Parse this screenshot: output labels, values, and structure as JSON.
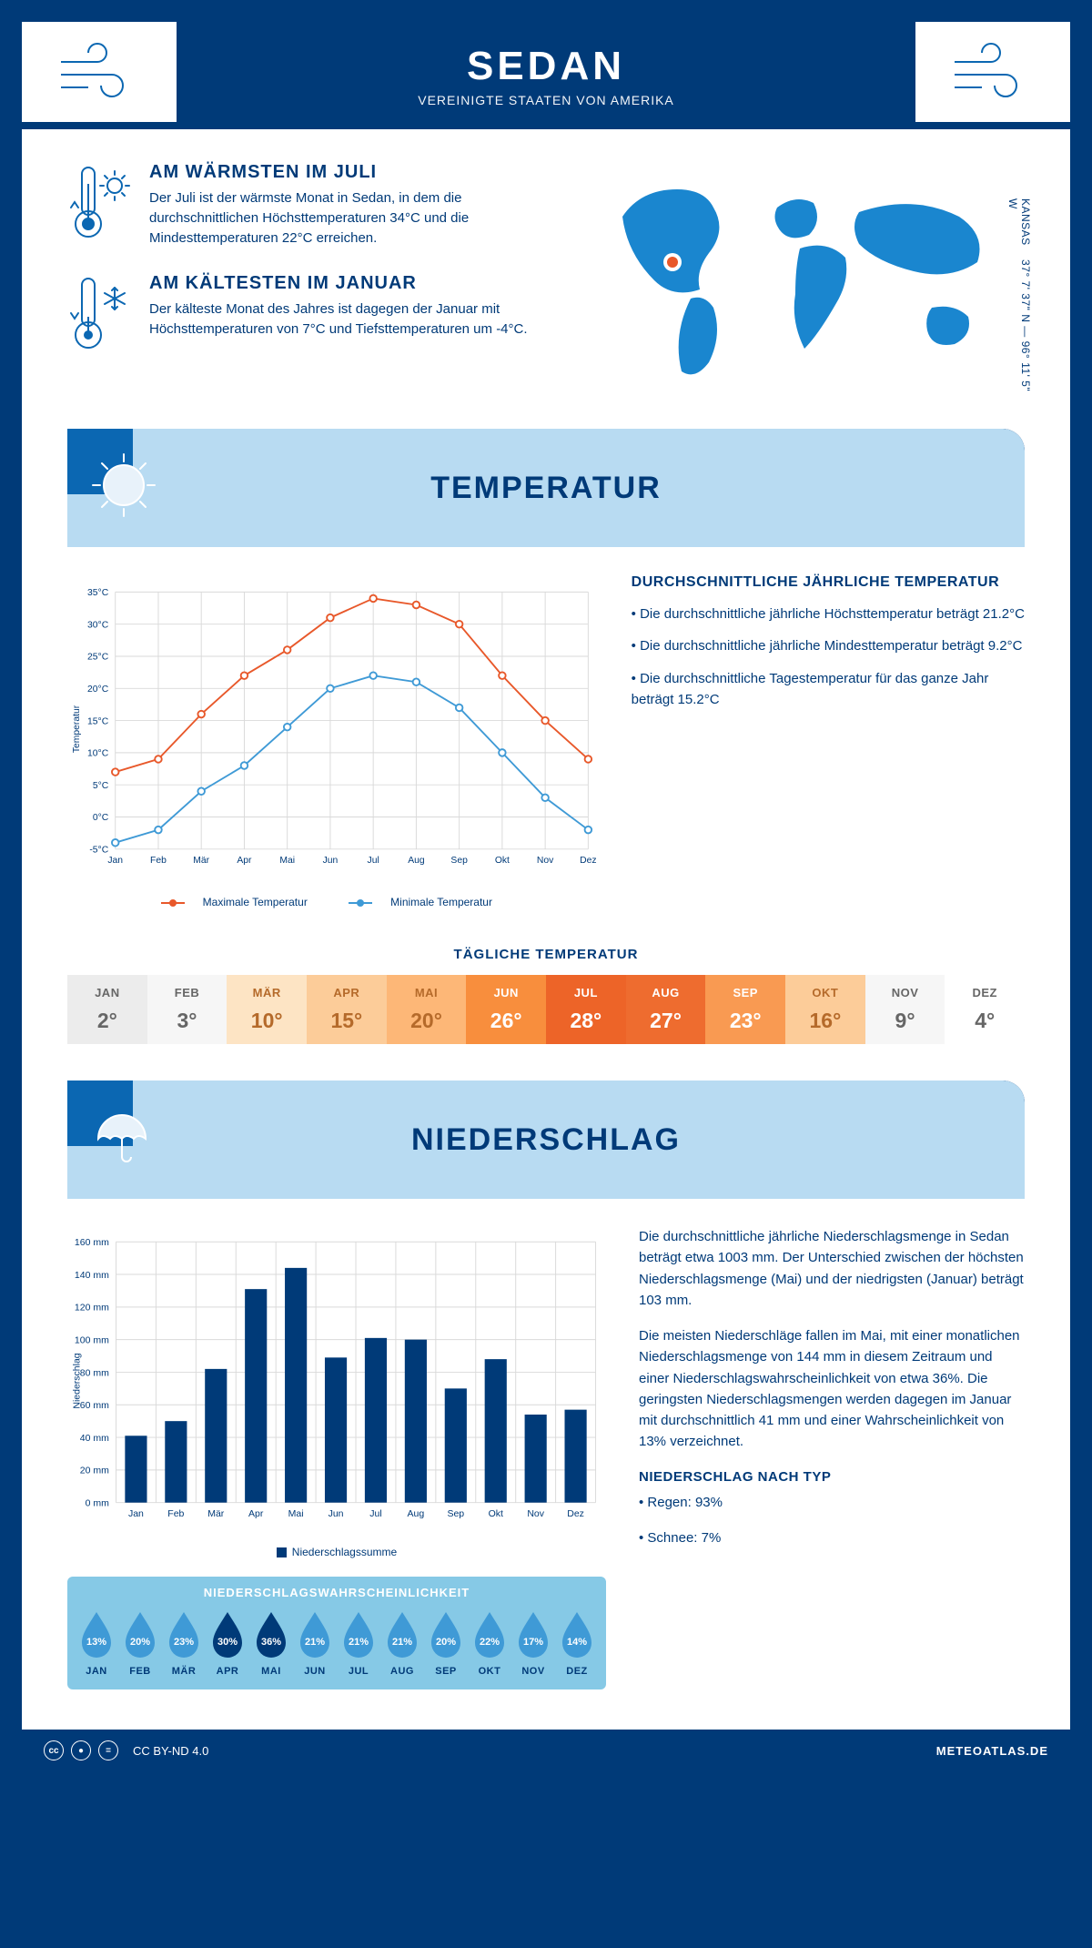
{
  "header": {
    "city": "SEDAN",
    "country": "VEREINIGTE STAATEN VON AMERIKA"
  },
  "facts": {
    "warm": {
      "title": "AM WÄRMSTEN IM JULI",
      "text": "Der Juli ist der wärmste Monat in Sedan, in dem die durchschnittlichen Höchsttemperaturen 34°C und die Mindesttemperaturen 22°C erreichen."
    },
    "cold": {
      "title": "AM KÄLTESTEN IM JANUAR",
      "text": "Der kälteste Monat des Jahres ist dagegen der Januar mit Höchsttemperaturen von 7°C und Tiefsttemperaturen um -4°C."
    }
  },
  "location": {
    "region": "KANSAS",
    "coords": "37° 7' 37\" N — 96° 11' 5\" W"
  },
  "temp": {
    "section_title": "TEMPERATUR",
    "info_heading": "DURCHSCHNITTLICHE JÄHRLICHE TEMPERATUR",
    "bullets": [
      "• Die durchschnittliche jährliche Höchsttemperatur beträgt 21.2°C",
      "• Die durchschnittliche jährliche Mindesttemperatur beträgt 9.2°C",
      "• Die durchschnittliche Tagestemperatur für das ganze Jahr beträgt 15.2°C"
    ],
    "chart": {
      "type": "line",
      "months": [
        "Jan",
        "Feb",
        "Mär",
        "Apr",
        "Mai",
        "Jun",
        "Jul",
        "Aug",
        "Sep",
        "Okt",
        "Nov",
        "Dez"
      ],
      "max_series": [
        7,
        9,
        16,
        22,
        26,
        31,
        34,
        33,
        30,
        22,
        15,
        9
      ],
      "min_series": [
        -4,
        -2,
        4,
        8,
        14,
        20,
        22,
        21,
        17,
        10,
        3,
        -2
      ],
      "max_color": "#e8582a",
      "min_color": "#3f9ad6",
      "ylim": [
        -5,
        35
      ],
      "ytick_step": 5,
      "ylabel": "Temperatur",
      "legend_max": "Maximale Temperatur",
      "legend_min": "Minimale Temperatur",
      "grid_color": "#d9d9d9",
      "background": "#ffffff",
      "line_width": 2,
      "marker_size": 4
    },
    "daily": {
      "title": "TÄGLICHE TEMPERATUR",
      "values": [
        "2°",
        "3°",
        "10°",
        "15°",
        "20°",
        "26°",
        "28°",
        "27°",
        "23°",
        "16°",
        "9°",
        "4°"
      ],
      "cell_bg": [
        "#ececec",
        "#f6f6f6",
        "#fde4c4",
        "#fccc99",
        "#fdb777",
        "#f88e3d",
        "#ed6428",
        "#ee6c2f",
        "#f99a52",
        "#fccc99",
        "#f6f6f6",
        "#ffffff"
      ],
      "cell_color": [
        "#666",
        "#666",
        "#b56a2a",
        "#b56a2a",
        "#b56a2a",
        "#fff",
        "#fff",
        "#fff",
        "#fff",
        "#b56a2a",
        "#666",
        "#666"
      ]
    }
  },
  "precip": {
    "section_title": "NIEDERSCHLAG",
    "chart": {
      "type": "bar",
      "months": [
        "Jan",
        "Feb",
        "Mär",
        "Apr",
        "Mai",
        "Jun",
        "Jul",
        "Aug",
        "Sep",
        "Okt",
        "Nov",
        "Dez"
      ],
      "values": [
        41,
        50,
        82,
        131,
        144,
        89,
        101,
        100,
        70,
        88,
        54,
        57
      ],
      "bar_color": "#003a78",
      "ylim": [
        0,
        160
      ],
      "ytick_step": 20,
      "ylabel": "Niederschlag",
      "legend": "Niederschlagssumme",
      "grid_color": "#d9d9d9",
      "bar_width": 0.55
    },
    "prob": {
      "title": "NIEDERSCHLAGSWAHRSCHEINLICHKEIT",
      "months": [
        "JAN",
        "FEB",
        "MÄR",
        "APR",
        "MAI",
        "JUN",
        "JUL",
        "AUG",
        "SEP",
        "OKT",
        "NOV",
        "DEZ"
      ],
      "values": [
        "13%",
        "20%",
        "23%",
        "30%",
        "36%",
        "21%",
        "21%",
        "21%",
        "20%",
        "22%",
        "17%",
        "14%"
      ],
      "fills": [
        "#3f9ad6",
        "#3f9ad6",
        "#3f9ad6",
        "#003a78",
        "#003a78",
        "#3f9ad6",
        "#3f9ad6",
        "#3f9ad6",
        "#3f9ad6",
        "#3f9ad6",
        "#3f9ad6",
        "#3f9ad6"
      ]
    },
    "text1": "Die durchschnittliche jährliche Niederschlagsmenge in Sedan beträgt etwa 1003 mm. Der Unterschied zwischen der höchsten Niederschlagsmenge (Mai) und der niedrigsten (Januar) beträgt 103 mm.",
    "text2": "Die meisten Niederschläge fallen im Mai, mit einer monatlichen Niederschlagsmenge von 144 mm in diesem Zeitraum und einer Niederschlagswahrscheinlichkeit von etwa 36%. Die geringsten Niederschlagsmengen werden dagegen im Januar mit durchschnittlich 41 mm und einer Wahrscheinlichkeit von 13% verzeichnet.",
    "type_heading": "NIEDERSCHLAG NACH TYP",
    "type_bullets": [
      "• Regen: 93%",
      "• Schnee: 7%"
    ]
  },
  "footer": {
    "license": "CC BY-ND 4.0",
    "site": "METEOATLAS.DE"
  }
}
